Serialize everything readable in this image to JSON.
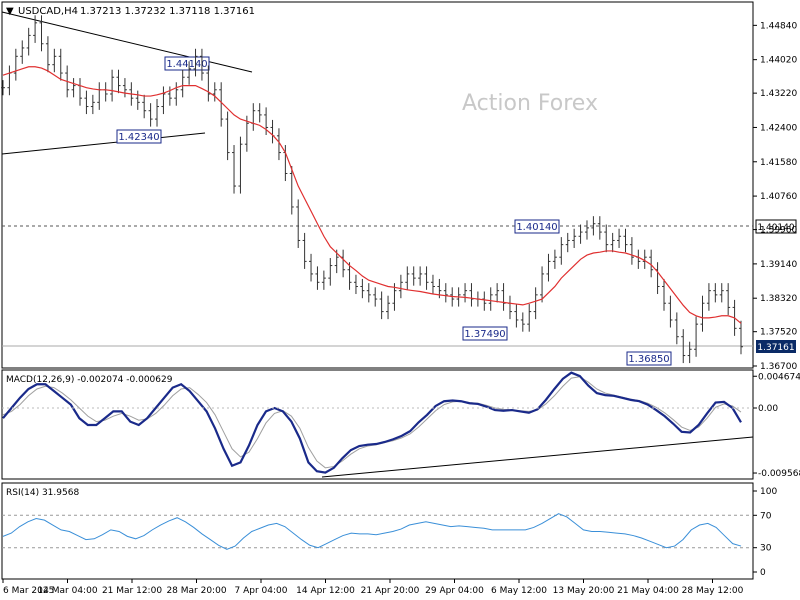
{
  "header": {
    "arrow": "▼",
    "symbol_tf": "USDCAD,H4",
    "ohlc": "1.37213 1.37232 1.37118 1.37161"
  },
  "watermark": "Action Forex",
  "colors": {
    "ma": "#e03030",
    "macd": "#1a2a8a",
    "signal": "#a0a0a0",
    "rsi": "#3a8fd8",
    "frame": "#000000",
    "price_box_bg": "#0a2a66"
  },
  "chart_data": [
    {
      "type": "line",
      "name": "price",
      "ylim": [
        1.367,
        1.4535
      ],
      "yticks": [
        "1.44840",
        "1.44020",
        "1.43220",
        "1.42400",
        "1.41580",
        "1.40760",
        "1.39960",
        "1.39140",
        "1.38320",
        "1.37520",
        "1.36700"
      ],
      "last_price": "1.37161",
      "level_label": "1.40140",
      "close_values": [
        1.4335,
        1.437,
        1.441,
        1.443,
        1.446,
        1.449,
        1.444,
        1.439,
        1.441,
        1.437,
        1.433,
        1.434,
        1.431,
        1.429,
        1.43,
        1.433,
        1.432,
        1.436,
        1.434,
        1.433,
        1.431,
        1.43,
        1.428,
        1.426,
        1.429,
        1.432,
        1.431,
        1.433,
        1.436,
        1.438,
        1.441,
        1.437,
        1.432,
        1.433,
        1.426,
        1.418,
        1.41,
        1.42,
        1.425,
        1.428,
        1.427,
        1.424,
        1.422,
        1.418,
        1.413,
        1.405,
        1.397,
        1.392,
        1.389,
        1.387,
        1.388,
        1.391,
        1.393,
        1.39,
        1.387,
        1.386,
        1.385,
        1.384,
        1.383,
        1.38,
        1.382,
        1.385,
        1.387,
        1.389,
        1.388,
        1.389,
        1.387,
        1.386,
        1.385,
        1.384,
        1.383,
        1.384,
        1.385,
        1.383,
        1.383,
        1.382,
        1.384,
        1.385,
        1.382,
        1.38,
        1.378,
        1.377,
        1.38,
        1.384,
        1.389,
        1.392,
        1.393,
        1.396,
        1.397,
        1.398,
        1.399,
        1.4,
        1.401,
        1.399,
        1.396,
        1.397,
        1.398,
        1.396,
        1.393,
        1.392,
        1.393,
        1.39,
        1.386,
        1.382,
        1.378,
        1.374,
        1.3695,
        1.371,
        1.377,
        1.382,
        1.385,
        1.384,
        1.385,
        1.381,
        1.376,
        1.3716
      ],
      "ma_values": [
        1.4365,
        1.437,
        1.4375,
        1.438,
        1.4385,
        1.4385,
        1.4382,
        1.4375,
        1.4365,
        1.4355,
        1.435,
        1.4345,
        1.434,
        1.4335,
        1.4332,
        1.433,
        1.433,
        1.4328,
        1.4325,
        1.4322,
        1.432,
        1.4318,
        1.4315,
        1.4315,
        1.4318,
        1.4322,
        1.4328,
        1.4335,
        1.434,
        1.434,
        1.434,
        1.4333,
        1.4325,
        1.4315,
        1.43,
        1.4285,
        1.427,
        1.426,
        1.4255,
        1.425,
        1.4245,
        1.4235,
        1.4222,
        1.4205,
        1.418,
        1.414,
        1.41,
        1.407,
        1.404,
        1.401,
        1.398,
        1.3955,
        1.394,
        1.3925,
        1.391,
        1.3898,
        1.3885,
        1.3875,
        1.387,
        1.3865,
        1.386,
        1.3858,
        1.3855,
        1.3852,
        1.385,
        1.3848,
        1.3845,
        1.3842,
        1.384,
        1.3838,
        1.3836,
        1.3835,
        1.3834,
        1.3832,
        1.383,
        1.3828,
        1.3826,
        1.3824,
        1.3822,
        1.382,
        1.3818,
        1.3816,
        1.382,
        1.3825,
        1.383,
        1.3845,
        1.386,
        1.388,
        1.3895,
        1.391,
        1.3925,
        1.3935,
        1.394,
        1.3942,
        1.3945,
        1.3945,
        1.3942,
        1.394,
        1.3935,
        1.393,
        1.3922,
        1.3912,
        1.3895,
        1.3875,
        1.3855,
        1.3835,
        1.3815,
        1.3798,
        1.379,
        1.3785,
        1.3785,
        1.3787,
        1.379,
        1.379,
        1.3785,
        1.3772
      ]
    },
    {
      "type": "line",
      "name": "MACD(12,26,9)",
      "header": "MACD(12,26,9) -0.002074 -0.000629",
      "yticks": [
        "0.004674",
        "0.00",
        "-0.009568"
      ],
      "ylim": [
        -0.0103,
        0.0053
      ],
      "macd": [
        -0.0015,
        0.0,
        0.0015,
        0.0028,
        0.0035,
        0.0035,
        0.0025,
        0.0015,
        0.0005,
        -0.0015,
        -0.0025,
        -0.0025,
        -0.0015,
        -0.0005,
        -0.0005,
        -0.002,
        -0.0025,
        -0.0015,
        0.0,
        0.0015,
        0.003,
        0.0035,
        0.0025,
        0.001,
        -0.0005,
        -0.003,
        -0.006,
        -0.0085,
        -0.008,
        -0.0055,
        -0.0025,
        -0.0005,
        0.0,
        -0.0005,
        -0.002,
        -0.0045,
        -0.008,
        -0.0093,
        -0.0095,
        -0.0088,
        -0.0074,
        -0.0062,
        -0.0056,
        -0.0054,
        -0.0053,
        -0.005,
        -0.0046,
        -0.0041,
        -0.0034,
        -0.0021,
        -0.001,
        0.0003,
        0.001,
        0.0011,
        0.001,
        0.0007,
        0.0006,
        0.0002,
        -0.0003,
        -0.0004,
        -0.0003,
        -0.0005,
        -0.0007,
        -0.0002,
        0.0012,
        0.0028,
        0.0043,
        0.0052,
        0.0047,
        0.0033,
        0.0022,
        0.0019,
        0.0018,
        0.0015,
        0.0012,
        0.001,
        0.0005,
        -0.0003,
        -0.0012,
        -0.0023,
        -0.0035,
        -0.0036,
        -0.0025,
        -0.0008,
        0.0008,
        0.0009,
        0.0,
        -0.0021
      ],
      "signal": [
        -0.001,
        -0.0005,
        0.0005,
        0.0018,
        0.0028,
        0.0032,
        0.003,
        0.0022,
        0.0012,
        0.0,
        -0.0012,
        -0.002,
        -0.0018,
        -0.0012,
        -0.0008,
        -0.0012,
        -0.0018,
        -0.0016,
        -0.0008,
        0.0004,
        0.0018,
        0.0028,
        0.003,
        0.002,
        0.0008,
        -0.001,
        -0.0035,
        -0.006,
        -0.0072,
        -0.0065,
        -0.0045,
        -0.0022,
        -0.0008,
        -0.0004,
        -0.0012,
        -0.003,
        -0.0058,
        -0.0078,
        -0.0088,
        -0.0086,
        -0.0078,
        -0.0068,
        -0.006,
        -0.0056,
        -0.0054,
        -0.0051,
        -0.0048,
        -0.0044,
        -0.0038,
        -0.0028,
        -0.0016,
        -0.0004,
        0.0005,
        0.0009,
        0.001,
        0.0008,
        0.0007,
        0.0004,
        0.0,
        -0.0002,
        -0.0003,
        -0.0004,
        -0.0005,
        -0.0003,
        0.0006,
        0.0018,
        0.0032,
        0.0044,
        0.0046,
        0.0038,
        0.0028,
        0.0022,
        0.0019,
        0.0016,
        0.0013,
        0.0011,
        0.0007,
        0.0001,
        -0.0007,
        -0.0017,
        -0.0028,
        -0.0033,
        -0.0028,
        -0.0015,
        0.0001,
        0.0006,
        0.0003,
        -0.0006
      ]
    },
    {
      "type": "line",
      "name": "RSI(14)",
      "header": "RSI(14) 31.9568",
      "yticks": [
        "100",
        "70",
        "30",
        "0"
      ],
      "ylim": [
        0,
        100
      ],
      "values": [
        44,
        48,
        56,
        62,
        66,
        64,
        58,
        52,
        50,
        45,
        40,
        41,
        46,
        52,
        50,
        44,
        41,
        45,
        52,
        58,
        63,
        67,
        62,
        55,
        47,
        40,
        33,
        28,
        32,
        42,
        50,
        54,
        58,
        60,
        56,
        48,
        40,
        33,
        30,
        35,
        40,
        45,
        48,
        47,
        47,
        46,
        48,
        50,
        53,
        58,
        60,
        62,
        60,
        58,
        56,
        57,
        56,
        55,
        54,
        52,
        52,
        52,
        52,
        52,
        55,
        60,
        66,
        72,
        68,
        60,
        52,
        50,
        50,
        49,
        48,
        47,
        45,
        42,
        38,
        34,
        30,
        32,
        40,
        52,
        58,
        60,
        55,
        45,
        35,
        32
      ]
    }
  ],
  "xaxis": {
    "labels": [
      "6 Mar 2025",
      "14 Mar 04:00",
      "21 Mar 12:00",
      "28 Mar 20:00",
      "7 Apr 04:00",
      "14 Apr 12:00",
      "21 Apr 20:00",
      "29 Apr 04:00",
      "6 May 12:00",
      "13 May 20:00",
      "21 May 04:00",
      "28 May 12:00"
    ]
  },
  "annotations": {
    "price_labels": [
      "1.44140",
      "1.42340",
      "1.40140",
      "1.37490",
      "1.36850"
    ]
  }
}
